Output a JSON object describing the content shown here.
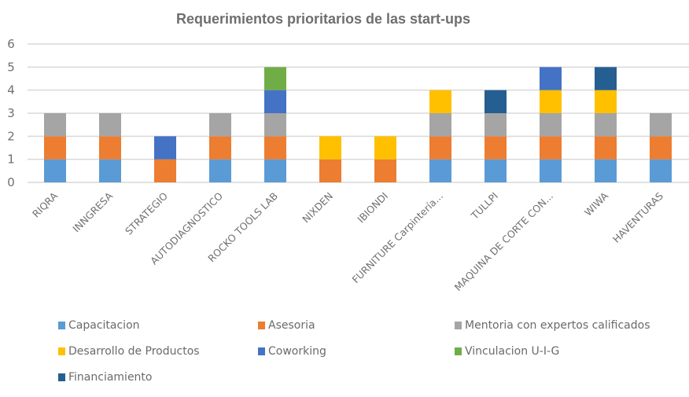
{
  "chart_data": {
    "type": "bar",
    "stacked": true,
    "title": "Requerimientos prioritarios de las start-ups",
    "xlabel": "",
    "ylabel": "",
    "ylim": [
      0,
      6
    ],
    "yticks": [
      0,
      1,
      2,
      3,
      4,
      5,
      6
    ],
    "grid": true,
    "legend_position": "bottom",
    "categories": [
      "RIQRA",
      "INNGRESA",
      "STRATEGIO",
      "AUTODIAGNOSTICO",
      "ROCKO TOOLS LAB",
      "NIXDEN",
      "IBIONDI",
      "FURNITURE Carpintería...",
      "TULLPI",
      "MAQUINA DE CORTE CON...",
      "WIWA",
      "HAVENTURAS"
    ],
    "series": [
      {
        "name": "Capacitacion",
        "color": "#5B9BD5",
        "values": [
          1,
          1,
          0,
          1,
          1,
          0,
          0,
          1,
          1,
          1,
          1,
          1
        ]
      },
      {
        "name": "Asesoria",
        "color": "#ED7D31",
        "values": [
          1,
          1,
          1,
          1,
          1,
          1,
          1,
          1,
          1,
          1,
          1,
          1
        ]
      },
      {
        "name": "Mentoria con expertos calificados",
        "color": "#A5A5A5",
        "values": [
          1,
          1,
          0,
          1,
          1,
          0,
          0,
          1,
          1,
          1,
          1,
          1
        ]
      },
      {
        "name": "Desarrollo de Productos",
        "color": "#FFC000",
        "values": [
          0,
          0,
          0,
          0,
          0,
          1,
          1,
          1,
          0,
          1,
          1,
          0
        ]
      },
      {
        "name": "Coworking",
        "color": "#4472C4",
        "values": [
          0,
          0,
          1,
          0,
          1,
          0,
          0,
          0,
          0,
          1,
          0,
          0
        ]
      },
      {
        "name": "Vinculacion U-I-G",
        "color": "#70AD47",
        "values": [
          0,
          0,
          0,
          0,
          1,
          0,
          0,
          0,
          0,
          0,
          0,
          0
        ]
      },
      {
        "name": "Financiamiento",
        "color": "#255E91",
        "values": [
          0,
          0,
          0,
          0,
          0,
          0,
          0,
          0,
          1,
          0,
          1,
          0
        ]
      }
    ]
  }
}
